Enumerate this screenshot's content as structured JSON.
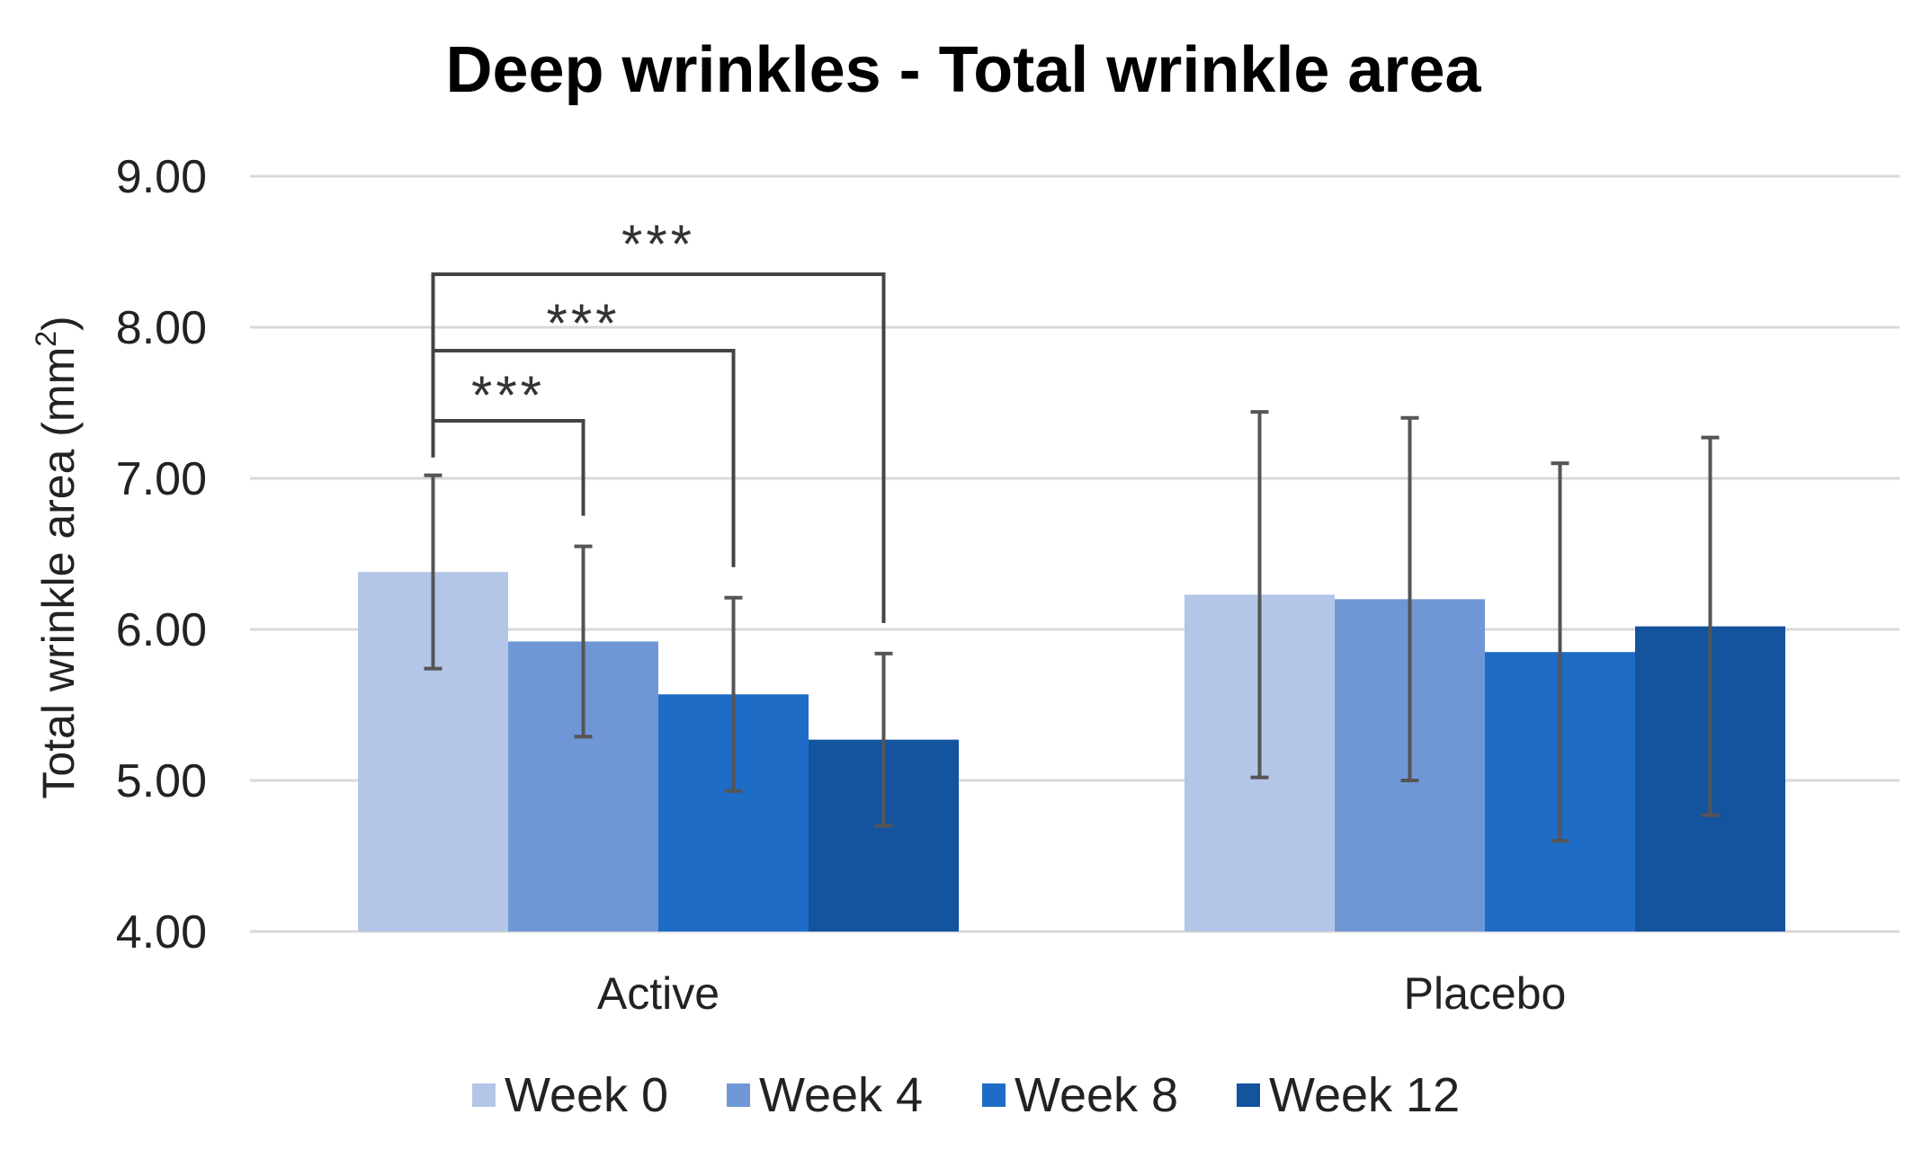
{
  "chart_data": {
    "type": "bar",
    "title": "Deep wrinkles - Total wrinkle area",
    "xlabel": "",
    "ylabel": "Total wrinkle area (mm",
    "ylabel_superscript": "2",
    "ylabel_suffix": ")",
    "ylim": [
      4.0,
      9.0
    ],
    "yticks": [
      4.0,
      5.0,
      6.0,
      7.0,
      8.0,
      9.0
    ],
    "ytick_labels": [
      "4.00",
      "5.00",
      "6.00",
      "7.00",
      "8.00",
      "9.00"
    ],
    "grid": true,
    "legend_position": "bottom",
    "categories": [
      "Active",
      "Placebo"
    ],
    "series": [
      {
        "name": "Week 0",
        "color": "#B4C6E7",
        "values": [
          6.38,
          6.23
        ],
        "error": [
          0.64,
          1.21
        ]
      },
      {
        "name": "Week 4",
        "color": "#6F97D6",
        "values": [
          5.92,
          6.2
        ],
        "error": [
          0.63,
          1.2
        ]
      },
      {
        "name": "Week 8",
        "color": "#1F6CC6",
        "values": [
          5.57,
          5.85
        ],
        "error": [
          0.64,
          1.25
        ]
      },
      {
        "name": "Week 12",
        "color": "#14539E",
        "values": [
          5.27,
          6.02
        ],
        "error": [
          0.57,
          1.25
        ]
      }
    ],
    "significance": [
      {
        "category": "Active",
        "from": "Week 0",
        "to": "Week 4",
        "label": "***"
      },
      {
        "category": "Active",
        "from": "Week 0",
        "to": "Week 8",
        "label": "***"
      },
      {
        "category": "Active",
        "from": "Week 0",
        "to": "Week 12",
        "label": "***"
      }
    ]
  }
}
